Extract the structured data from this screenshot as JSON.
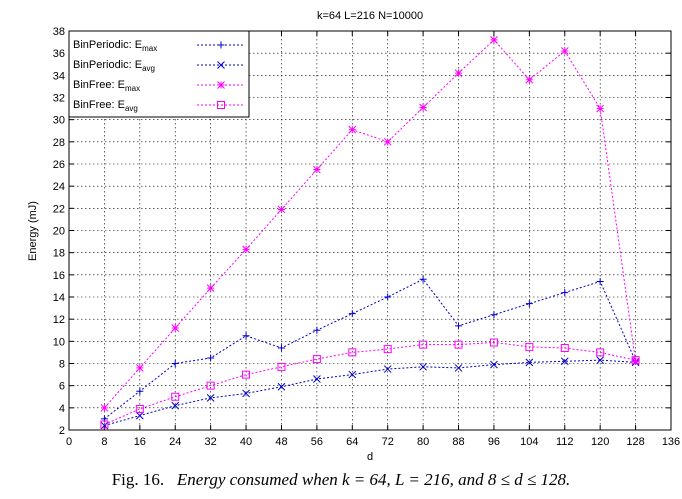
{
  "chart_data": {
    "type": "line",
    "title": "k=64 L=216 N=10000",
    "xlabel": "d",
    "ylabel": "Energy (mJ)",
    "xlim": [
      0,
      136
    ],
    "ylim": [
      2,
      38
    ],
    "xticks": [
      0,
      8,
      16,
      24,
      32,
      40,
      48,
      56,
      64,
      72,
      80,
      88,
      96,
      104,
      112,
      120,
      128,
      136
    ],
    "yticks": [
      2,
      4,
      6,
      8,
      10,
      12,
      14,
      16,
      18,
      20,
      22,
      24,
      26,
      28,
      30,
      32,
      34,
      36,
      38
    ],
    "grid": true,
    "legend_position": "top-left",
    "x": [
      8,
      16,
      24,
      32,
      40,
      48,
      56,
      64,
      72,
      80,
      88,
      96,
      104,
      112,
      120,
      128
    ],
    "series": [
      {
        "legend_base": "BinPeriodic: E",
        "legend_sub": "max",
        "color": "#0000cc",
        "marker": "plus",
        "values": [
          3.0,
          5.5,
          8.0,
          8.5,
          10.5,
          9.4,
          11.0,
          12.5,
          14.0,
          15.6,
          11.4,
          12.4,
          13.4,
          14.4,
          15.4,
          8.2
        ]
      },
      {
        "legend_base": "BinPeriodic: E",
        "legend_sub": "avg",
        "color": "#0000cc",
        "marker": "x",
        "values": [
          2.4,
          3.3,
          4.2,
          4.9,
          5.3,
          5.9,
          6.6,
          7.0,
          7.5,
          7.7,
          7.6,
          7.9,
          8.1,
          8.2,
          8.3,
          8.1
        ]
      },
      {
        "legend_base": "BinFree: E",
        "legend_sub": "max",
        "color": "#ff00ff",
        "marker": "star",
        "values": [
          4.0,
          7.6,
          11.2,
          14.8,
          18.3,
          21.9,
          25.5,
          29.1,
          28.0,
          31.1,
          34.2,
          37.2,
          33.6,
          36.2,
          31.0,
          8.2
        ]
      },
      {
        "legend_base": "BinFree: E",
        "legend_sub": "avg",
        "color": "#ff00ff",
        "marker": "square",
        "values": [
          2.5,
          3.9,
          5.0,
          6.0,
          7.0,
          7.7,
          8.4,
          9.0,
          9.3,
          9.7,
          9.7,
          9.9,
          9.5,
          9.4,
          9.0,
          8.3
        ]
      }
    ]
  },
  "caption": {
    "prefix": "Fig. 16.",
    "text": "Energy consumed when k = 64, L = 216, and 8 ≤ d ≤ 128."
  }
}
